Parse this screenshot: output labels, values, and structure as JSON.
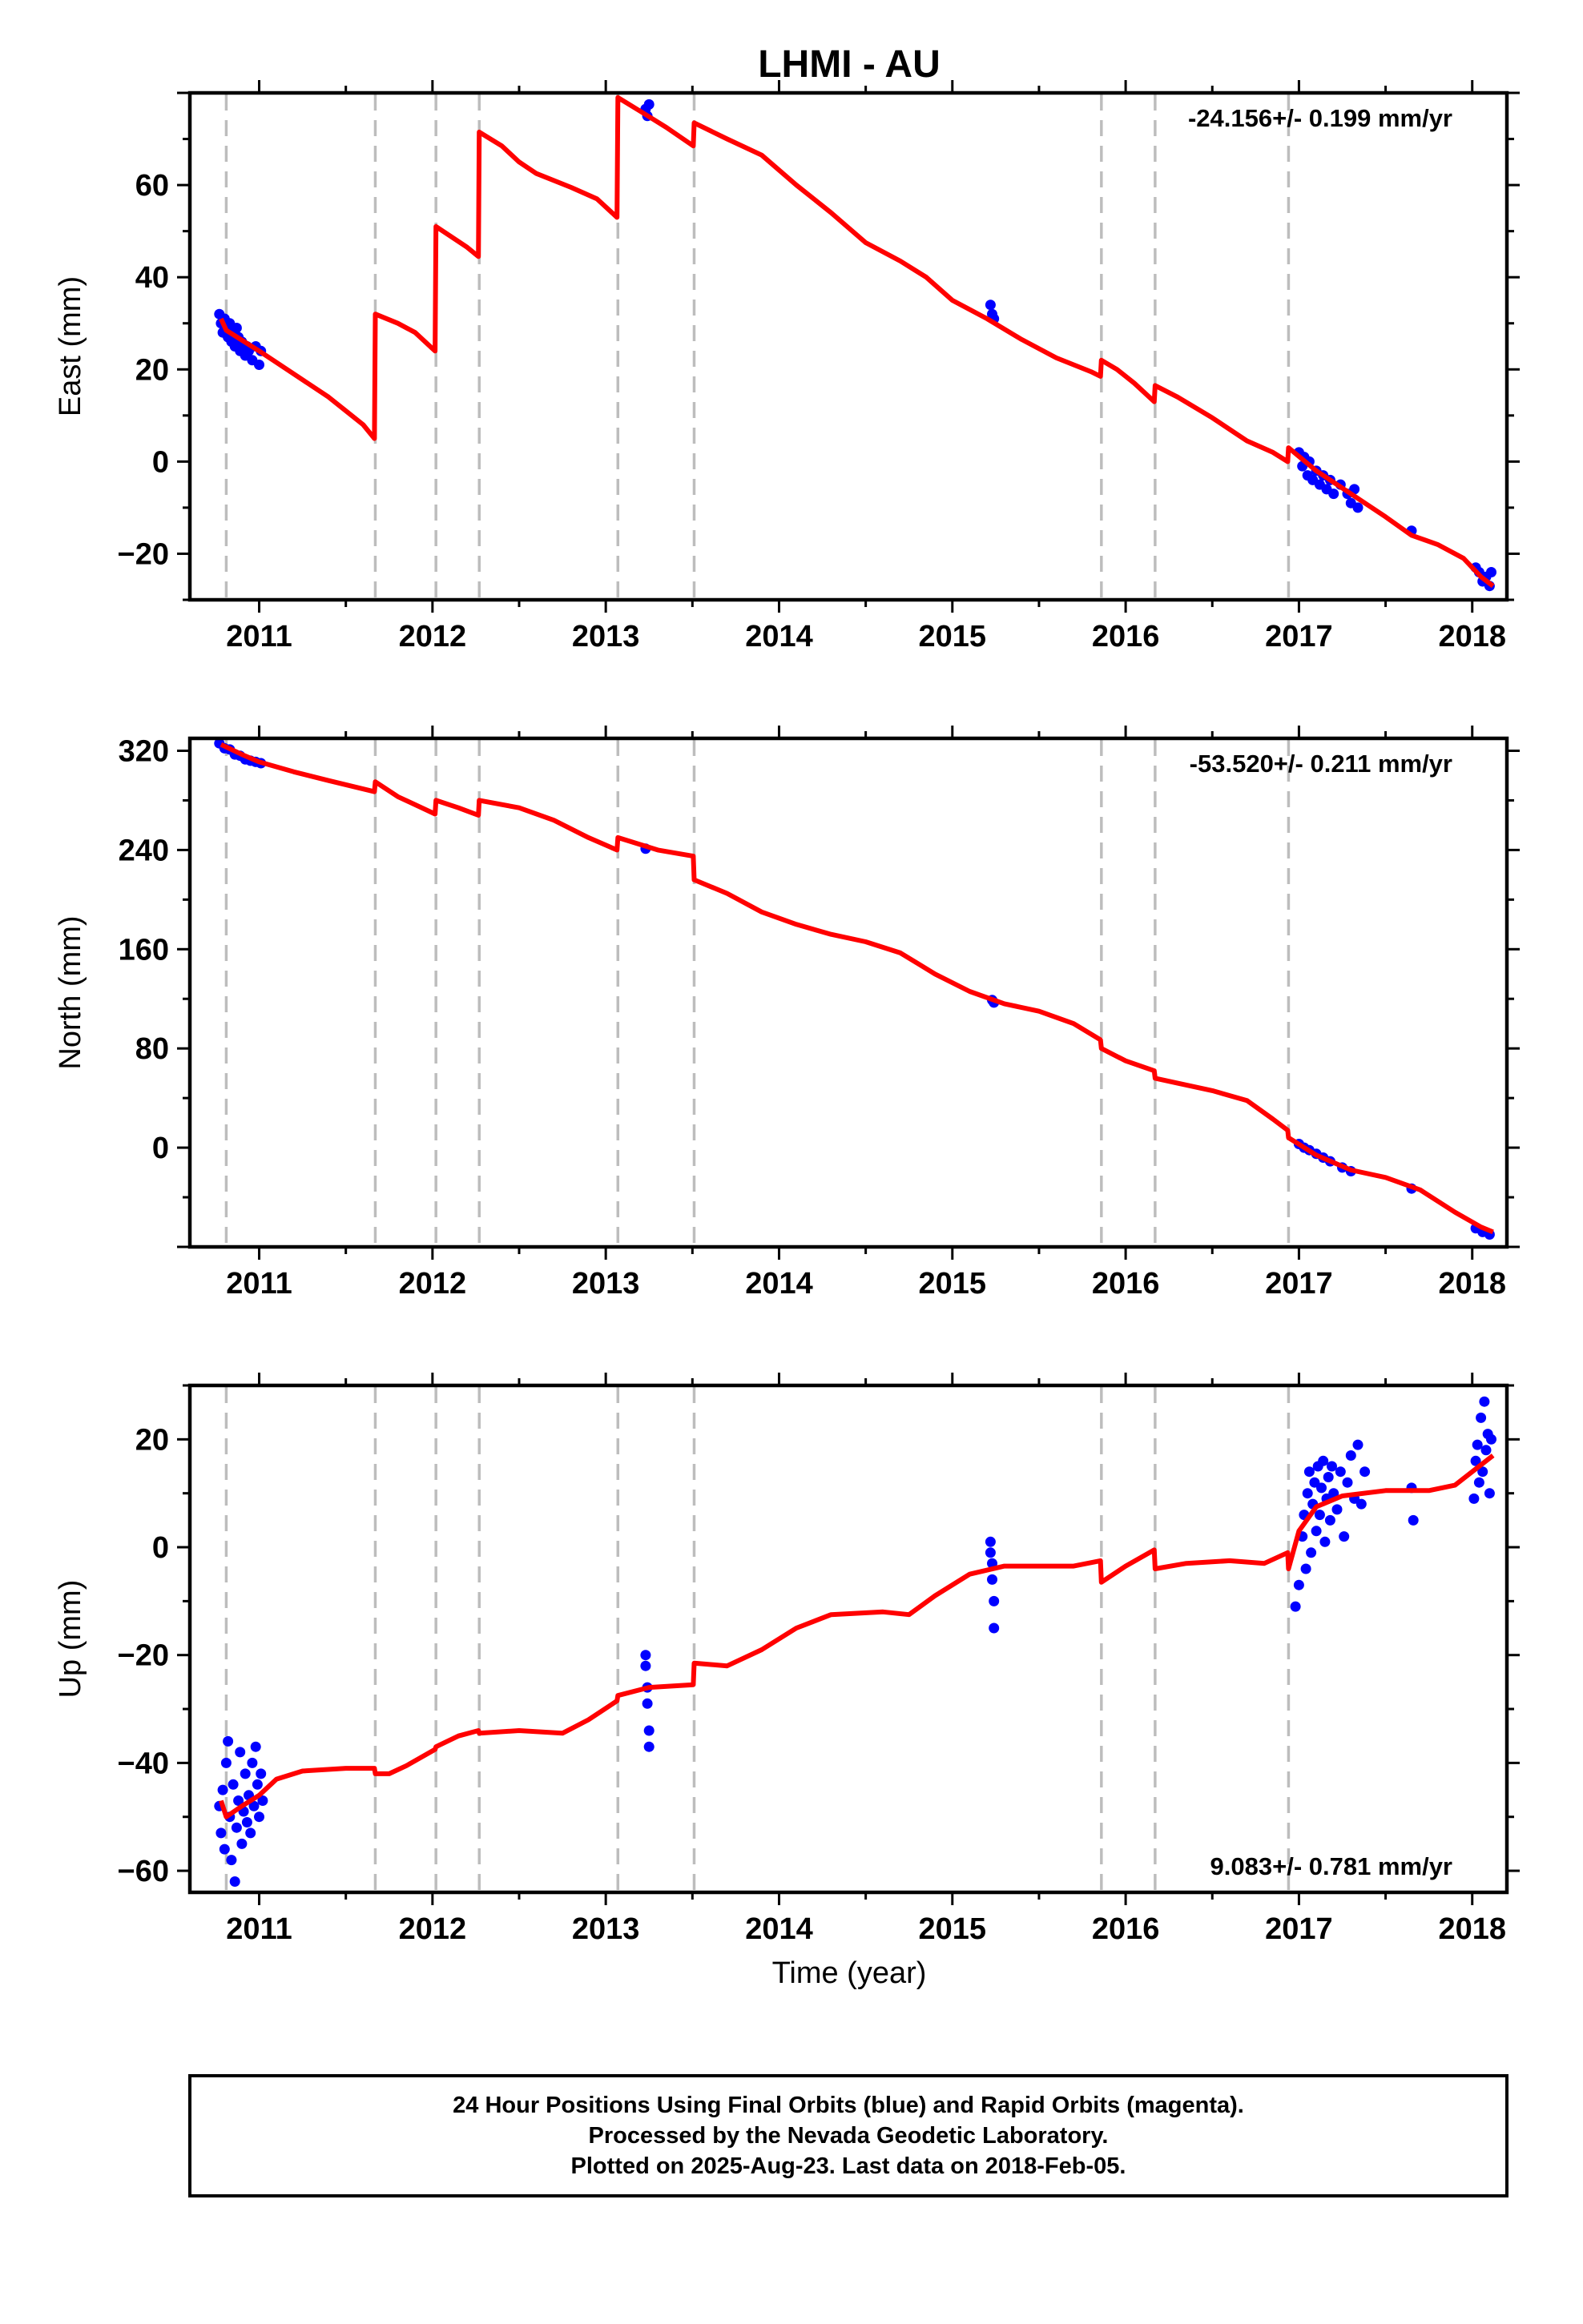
{
  "title": "LHMI - AU",
  "xlabel": "Time (year)",
  "footer": {
    "line1": "24 Hour Positions Using Final Orbits (blue) and Rapid Orbits (magenta).",
    "line2": "Processed by the Nevada Geodetic Laboratory.",
    "line3": "Plotted on 2025-Aug-23. Last data on 2018-Feb-05."
  },
  "colors": {
    "observations": "#0000ff",
    "model": "#ff0000",
    "event_lines": "#bdbdbd",
    "frame": "#000000"
  },
  "chart_data": [
    {
      "type": "scatter",
      "panel": "east",
      "ylabel": "East (mm)",
      "rate": "-24.156+/- 0.199 mm/yr",
      "rate_position": "top-right",
      "xlim": [
        2010.6,
        2018.2
      ],
      "ylim": [
        -30,
        80
      ],
      "xticks": [
        2011,
        2012,
        2013,
        2014,
        2015,
        2016,
        2017,
        2018
      ],
      "yticks": [
        -20,
        0,
        20,
        40,
        60
      ],
      "event_lines": [
        2010.81,
        2011.67,
        2012.02,
        2012.27,
        2013.07,
        2013.51,
        2015.86,
        2016.17,
        2016.94
      ],
      "model": [
        [
          2010.78,
          31
        ],
        [
          2010.81,
          28.5
        ],
        [
          2011.0,
          24
        ],
        [
          2011.2,
          19
        ],
        [
          2011.4,
          14
        ],
        [
          2011.6,
          8
        ],
        [
          2011.665,
          5
        ],
        [
          2011.67,
          32
        ],
        [
          2011.8,
          30
        ],
        [
          2011.9,
          28
        ],
        [
          2012.015,
          24
        ],
        [
          2012.02,
          51
        ],
        [
          2012.1,
          49
        ],
        [
          2012.2,
          46.5
        ],
        [
          2012.265,
          44.5
        ],
        [
          2012.27,
          71.5
        ],
        [
          2012.4,
          68.5
        ],
        [
          2012.5,
          65
        ],
        [
          2012.6,
          62.5
        ],
        [
          2012.8,
          59.5
        ],
        [
          2012.95,
          57
        ],
        [
          2013.065,
          53
        ],
        [
          2013.07,
          79
        ],
        [
          2013.2,
          76
        ],
        [
          2013.35,
          72.5
        ],
        [
          2013.505,
          68.5
        ],
        [
          2013.51,
          73.5
        ],
        [
          2013.7,
          70
        ],
        [
          2013.9,
          66.5
        ],
        [
          2014.1,
          60
        ],
        [
          2014.3,
          54
        ],
        [
          2014.5,
          47.5
        ],
        [
          2014.7,
          43.5
        ],
        [
          2014.85,
          40
        ],
        [
          2015.0,
          35
        ],
        [
          2015.2,
          31
        ],
        [
          2015.4,
          26.5
        ],
        [
          2015.6,
          22.5
        ],
        [
          2015.8,
          19.5
        ],
        [
          2015.855,
          18.5
        ],
        [
          2015.86,
          22
        ],
        [
          2015.95,
          20
        ],
        [
          2016.05,
          17
        ],
        [
          2016.165,
          13
        ],
        [
          2016.17,
          16.5
        ],
        [
          2016.3,
          14
        ],
        [
          2016.5,
          9.5
        ],
        [
          2016.7,
          4.5
        ],
        [
          2016.85,
          2
        ],
        [
          2016.935,
          0
        ],
        [
          2016.94,
          3
        ],
        [
          2017.1,
          -2
        ],
        [
          2017.3,
          -7
        ],
        [
          2017.5,
          -12
        ],
        [
          2017.65,
          -16
        ],
        [
          2017.8,
          -18
        ],
        [
          2017.95,
          -21
        ],
        [
          2018.05,
          -25
        ],
        [
          2018.12,
          -27
        ]
      ],
      "points": [
        [
          2010.77,
          32
        ],
        [
          2010.78,
          30
        ],
        [
          2010.79,
          28
        ],
        [
          2010.8,
          31
        ],
        [
          2010.81,
          29
        ],
        [
          2010.82,
          27
        ],
        [
          2010.83,
          30
        ],
        [
          2010.84,
          26
        ],
        [
          2010.85,
          28
        ],
        [
          2010.86,
          25
        ],
        [
          2010.87,
          29
        ],
        [
          2010.88,
          27
        ],
        [
          2010.89,
          24
        ],
        [
          2010.9,
          26
        ],
        [
          2010.91,
          25
        ],
        [
          2010.92,
          23
        ],
        [
          2010.93,
          25
        ],
        [
          2010.94,
          24
        ],
        [
          2010.96,
          22
        ],
        [
          2010.98,
          25
        ],
        [
          2011.0,
          21
        ],
        [
          2011.01,
          24
        ],
        [
          2013.23,
          76.5
        ],
        [
          2013.24,
          75
        ],
        [
          2013.25,
          77.5
        ],
        [
          2015.22,
          34
        ],
        [
          2015.23,
          32
        ],
        [
          2015.24,
          31
        ],
        [
          2017.0,
          2
        ],
        [
          2017.02,
          -1
        ],
        [
          2017.03,
          1
        ],
        [
          2017.05,
          -3
        ],
        [
          2017.06,
          0
        ],
        [
          2017.08,
          -4
        ],
        [
          2017.1,
          -2
        ],
        [
          2017.12,
          -5
        ],
        [
          2017.14,
          -3
        ],
        [
          2017.16,
          -6
        ],
        [
          2017.18,
          -4
        ],
        [
          2017.2,
          -7
        ],
        [
          2017.24,
          -5
        ],
        [
          2017.28,
          -7
        ],
        [
          2017.3,
          -9
        ],
        [
          2017.32,
          -6
        ],
        [
          2017.34,
          -10
        ],
        [
          2017.65,
          -15
        ],
        [
          2018.02,
          -23
        ],
        [
          2018.04,
          -24
        ],
        [
          2018.06,
          -26
        ],
        [
          2018.08,
          -25
        ],
        [
          2018.1,
          -27
        ],
        [
          2018.11,
          -24
        ]
      ]
    },
    {
      "type": "scatter",
      "panel": "north",
      "ylabel": "North (mm)",
      "rate": "-53.520+/- 0.211 mm/yr",
      "rate_position": "top-right",
      "xlim": [
        2010.6,
        2018.2
      ],
      "ylim": [
        -80,
        330
      ],
      "xticks": [
        2011,
        2012,
        2013,
        2014,
        2015,
        2016,
        2017,
        2018
      ],
      "yticks": [
        0,
        80,
        160,
        240,
        320
      ],
      "event_lines": [
        2010.81,
        2011.67,
        2012.02,
        2012.27,
        2013.07,
        2013.51,
        2015.86,
        2016.17,
        2016.94
      ],
      "model": [
        [
          2010.78,
          325
        ],
        [
          2010.9,
          317
        ],
        [
          2011.0,
          311
        ],
        [
          2011.2,
          303
        ],
        [
          2011.4,
          296
        ],
        [
          2011.665,
          287
        ],
        [
          2011.67,
          295
        ],
        [
          2011.8,
          283
        ],
        [
          2012.015,
          269
        ],
        [
          2012.02,
          280
        ],
        [
          2012.15,
          274
        ],
        [
          2012.265,
          268
        ],
        [
          2012.27,
          280
        ],
        [
          2012.5,
          274
        ],
        [
          2012.7,
          264
        ],
        [
          2012.9,
          250
        ],
        [
          2013.065,
          240
        ],
        [
          2013.07,
          250
        ],
        [
          2013.3,
          240
        ],
        [
          2013.505,
          235
        ],
        [
          2013.51,
          216
        ],
        [
          2013.7,
          205
        ],
        [
          2013.9,
          190
        ],
        [
          2014.1,
          180
        ],
        [
          2014.3,
          172
        ],
        [
          2014.5,
          166
        ],
        [
          2014.7,
          157
        ],
        [
          2014.9,
          140
        ],
        [
          2015.1,
          126
        ],
        [
          2015.3,
          116
        ],
        [
          2015.5,
          110
        ],
        [
          2015.7,
          100
        ],
        [
          2015.855,
          87
        ],
        [
          2015.86,
          80
        ],
        [
          2016.0,
          70
        ],
        [
          2016.165,
          62
        ],
        [
          2016.17,
          56
        ],
        [
          2016.3,
          52
        ],
        [
          2016.5,
          46
        ],
        [
          2016.7,
          38
        ],
        [
          2016.85,
          23
        ],
        [
          2016.935,
          14
        ],
        [
          2016.94,
          8
        ],
        [
          2017.1,
          -6
        ],
        [
          2017.3,
          -18
        ],
        [
          2017.5,
          -24
        ],
        [
          2017.7,
          -34
        ],
        [
          2017.9,
          -52
        ],
        [
          2018.05,
          -64
        ],
        [
          2018.12,
          -68
        ]
      ],
      "points": [
        [
          2010.77,
          326
        ],
        [
          2010.8,
          322
        ],
        [
          2010.83,
          321
        ],
        [
          2010.86,
          317
        ],
        [
          2010.89,
          316
        ],
        [
          2010.92,
          313
        ],
        [
          2010.95,
          312
        ],
        [
          2010.98,
          311
        ],
        [
          2011.01,
          310
        ],
        [
          2013.23,
          241
        ],
        [
          2015.23,
          119
        ],
        [
          2015.24,
          117
        ],
        [
          2017.0,
          3
        ],
        [
          2017.03,
          0
        ],
        [
          2017.06,
          -2
        ],
        [
          2017.1,
          -5
        ],
        [
          2017.14,
          -8
        ],
        [
          2017.18,
          -11
        ],
        [
          2017.25,
          -16
        ],
        [
          2017.3,
          -19
        ],
        [
          2017.65,
          -33
        ],
        [
          2018.02,
          -65
        ],
        [
          2018.06,
          -68
        ],
        [
          2018.1,
          -70
        ]
      ]
    },
    {
      "type": "scatter",
      "panel": "up",
      "ylabel": "Up (mm)",
      "rate": "9.083+/- 0.781 mm/yr",
      "rate_position": "bottom-right",
      "xlim": [
        2010.6,
        2018.2
      ],
      "ylim": [
        -64,
        30
      ],
      "xticks": [
        2011,
        2012,
        2013,
        2014,
        2015,
        2016,
        2017,
        2018
      ],
      "yticks": [
        -60,
        -40,
        -20,
        0,
        20
      ],
      "event_lines": [
        2010.81,
        2011.67,
        2012.02,
        2012.27,
        2013.07,
        2013.51,
        2015.86,
        2016.17,
        2016.94
      ],
      "model": [
        [
          2010.78,
          -47
        ],
        [
          2010.81,
          -50
        ],
        [
          2010.9,
          -48
        ],
        [
          2011.0,
          -46
        ],
        [
          2011.1,
          -43
        ],
        [
          2011.25,
          -41.5
        ],
        [
          2011.5,
          -41
        ],
        [
          2011.665,
          -41
        ],
        [
          2011.67,
          -42
        ],
        [
          2011.75,
          -42
        ],
        [
          2011.85,
          -40.5
        ],
        [
          2012.015,
          -37.5
        ],
        [
          2012.02,
          -37
        ],
        [
          2012.15,
          -35
        ],
        [
          2012.265,
          -34
        ],
        [
          2012.27,
          -34.5
        ],
        [
          2012.5,
          -34
        ],
        [
          2012.75,
          -34.5
        ],
        [
          2012.9,
          -32
        ],
        [
          2013.065,
          -28.5
        ],
        [
          2013.07,
          -27.5
        ],
        [
          2013.25,
          -26
        ],
        [
          2013.505,
          -25.5
        ],
        [
          2013.51,
          -21.5
        ],
        [
          2013.7,
          -22
        ],
        [
          2013.9,
          -19
        ],
        [
          2014.1,
          -15
        ],
        [
          2014.3,
          -12.5
        ],
        [
          2014.6,
          -12
        ],
        [
          2014.75,
          -12.5
        ],
        [
          2014.9,
          -9
        ],
        [
          2015.1,
          -5
        ],
        [
          2015.3,
          -3.5
        ],
        [
          2015.5,
          -3.5
        ],
        [
          2015.7,
          -3.5
        ],
        [
          2015.855,
          -2.5
        ],
        [
          2015.86,
          -6.5
        ],
        [
          2016.0,
          -3.5
        ],
        [
          2016.165,
          -0.5
        ],
        [
          2016.17,
          -4
        ],
        [
          2016.35,
          -3
        ],
        [
          2016.6,
          -2.5
        ],
        [
          2016.8,
          -3
        ],
        [
          2016.935,
          -1
        ],
        [
          2016.94,
          -4
        ],
        [
          2017.0,
          3
        ],
        [
          2017.1,
          7.5
        ],
        [
          2017.25,
          9.5
        ],
        [
          2017.5,
          10.5
        ],
        [
          2017.75,
          10.5
        ],
        [
          2017.9,
          11.5
        ],
        [
          2018.0,
          14
        ],
        [
          2018.12,
          17
        ]
      ],
      "points": [
        [
          2010.77,
          -48
        ],
        [
          2010.78,
          -53
        ],
        [
          2010.79,
          -45
        ],
        [
          2010.8,
          -56
        ],
        [
          2010.81,
          -40
        ],
        [
          2010.82,
          -36
        ],
        [
          2010.83,
          -50
        ],
        [
          2010.84,
          -58
        ],
        [
          2010.85,
          -44
        ],
        [
          2010.86,
          -62
        ],
        [
          2010.87,
          -52
        ],
        [
          2010.88,
          -47
        ],
        [
          2010.89,
          -38
        ],
        [
          2010.9,
          -55
        ],
        [
          2010.91,
          -49
        ],
        [
          2010.92,
          -42
        ],
        [
          2010.93,
          -51
        ],
        [
          2010.94,
          -46
        ],
        [
          2010.95,
          -53
        ],
        [
          2010.96,
          -40
        ],
        [
          2010.97,
          -48
        ],
        [
          2010.98,
          -37
        ],
        [
          2010.99,
          -44
        ],
        [
          2011.0,
          -50
        ],
        [
          2011.01,
          -42
        ],
        [
          2011.02,
          -47
        ],
        [
          2013.23,
          -20
        ],
        [
          2013.23,
          -22
        ],
        [
          2013.24,
          -26
        ],
        [
          2013.24,
          -29
        ],
        [
          2013.25,
          -34
        ],
        [
          2013.25,
          -37
        ],
        [
          2015.22,
          1
        ],
        [
          2015.22,
          -1
        ],
        [
          2015.23,
          -3
        ],
        [
          2015.23,
          -6
        ],
        [
          2015.24,
          -10
        ],
        [
          2015.24,
          -15
        ],
        [
          2016.98,
          -11
        ],
        [
          2017.0,
          -7
        ],
        [
          2017.02,
          2
        ],
        [
          2017.03,
          6
        ],
        [
          2017.04,
          -4
        ],
        [
          2017.05,
          10
        ],
        [
          2017.06,
          14
        ],
        [
          2017.07,
          -1
        ],
        [
          2017.08,
          8
        ],
        [
          2017.09,
          12
        ],
        [
          2017.1,
          3
        ],
        [
          2017.11,
          15
        ],
        [
          2017.12,
          6
        ],
        [
          2017.13,
          11
        ],
        [
          2017.14,
          16
        ],
        [
          2017.15,
          1
        ],
        [
          2017.16,
          9
        ],
        [
          2017.17,
          13
        ],
        [
          2017.18,
          5
        ],
        [
          2017.19,
          15
        ],
        [
          2017.2,
          10
        ],
        [
          2017.22,
          7
        ],
        [
          2017.24,
          14
        ],
        [
          2017.26,
          2
        ],
        [
          2017.28,
          12
        ],
        [
          2017.3,
          17
        ],
        [
          2017.32,
          9
        ],
        [
          2017.34,
          19
        ],
        [
          2017.36,
          8
        ],
        [
          2017.38,
          14
        ],
        [
          2017.65,
          11
        ],
        [
          2017.66,
          5
        ],
        [
          2018.01,
          9
        ],
        [
          2018.02,
          16
        ],
        [
          2018.03,
          19
        ],
        [
          2018.04,
          12
        ],
        [
          2018.05,
          24
        ],
        [
          2018.06,
          14
        ],
        [
          2018.07,
          27
        ],
        [
          2018.08,
          18
        ],
        [
          2018.09,
          21
        ],
        [
          2018.1,
          10
        ],
        [
          2018.11,
          20
        ]
      ]
    }
  ]
}
